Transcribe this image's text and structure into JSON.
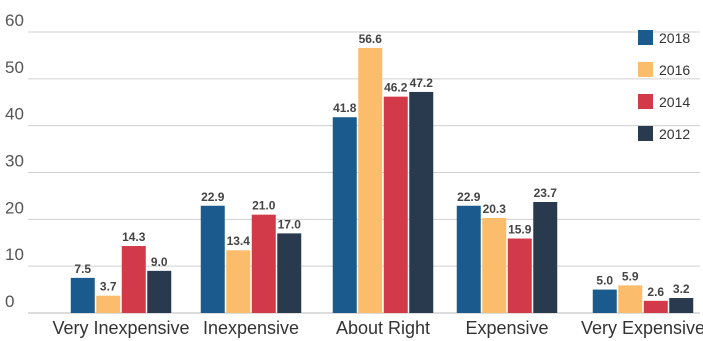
{
  "chart_data": {
    "type": "bar",
    "categories": [
      "Very Inexpensive",
      "Inexpensive",
      "About Right",
      "Expensive",
      "Very Expensive"
    ],
    "series": [
      {
        "name": "2018",
        "color": "#1a5a8c",
        "values": [
          7.5,
          22.9,
          41.8,
          22.9,
          5.0
        ]
      },
      {
        "name": "2016",
        "color": "#fbbd6c",
        "values": [
          3.7,
          13.4,
          56.6,
          20.3,
          5.9
        ]
      },
      {
        "name": "2014",
        "color": "#d23a4a",
        "values": [
          14.3,
          21.0,
          46.2,
          15.9,
          2.6
        ]
      },
      {
        "name": "2012",
        "color": "#2a3a4e",
        "values": [
          9.0,
          17.0,
          47.2,
          23.7,
          3.2
        ]
      }
    ],
    "yticks": [
      "0",
      "10",
      "20",
      "30",
      "40",
      "50",
      "60"
    ],
    "ylim": [
      0,
      60
    ],
    "grid": true,
    "legend_position": "top-right",
    "data_labels": [
      [
        "7.5",
        "22.9",
        "41.8",
        "22.9",
        "5.0"
      ],
      [
        "3.7",
        "13.4",
        "56.6",
        "20.3",
        "5.9"
      ],
      [
        "14.3",
        "21.0",
        "46.2",
        "15.9",
        "2.6"
      ],
      [
        "9.0",
        "17.0",
        "47.2",
        "23.7",
        "3.2"
      ]
    ]
  }
}
